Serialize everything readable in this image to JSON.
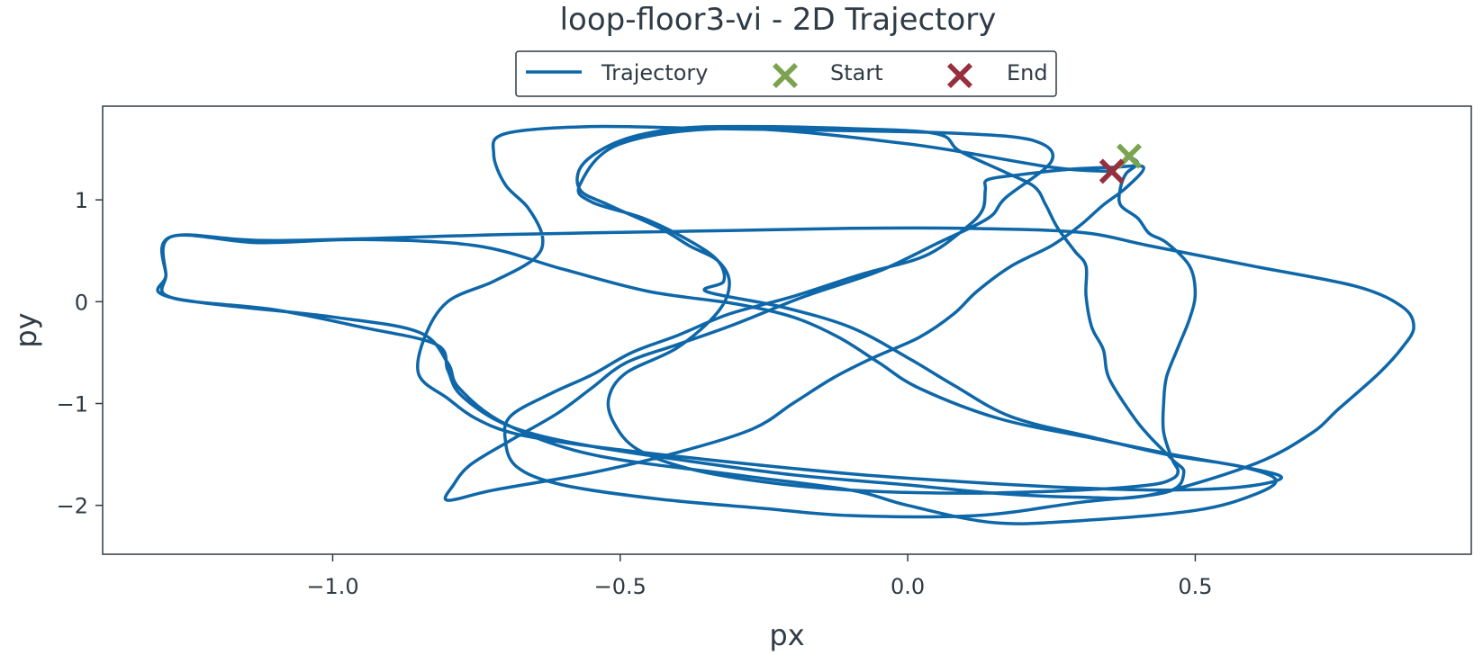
{
  "chart_data": {
    "type": "line",
    "title": "loop-floor3-vi - 2D Trajectory",
    "xlabel": "px",
    "ylabel": "py",
    "xlim": [
      -1.4,
      0.98
    ],
    "ylim": [
      -2.48,
      1.92
    ],
    "xticks": [
      -1.0,
      -0.5,
      0.0,
      0.5
    ],
    "xtick_labels": [
      "−1.0",
      "−0.5",
      "0.0",
      "0.5"
    ],
    "yticks": [
      1,
      0,
      -1,
      -2
    ],
    "ytick_labels": [
      "1",
      "0",
      "−1",
      "−2"
    ],
    "grid": false,
    "legend": {
      "placement": "top-center",
      "entries": [
        {
          "label": "Trajectory",
          "kind": "line",
          "color": "#0e67a8"
        },
        {
          "label": "Start",
          "kind": "x-marker",
          "color": "#7ba350"
        },
        {
          "label": "End",
          "kind": "x-marker",
          "color": "#96303c"
        }
      ]
    },
    "series": [
      {
        "label": "Trajectory",
        "color": "#0e67a8",
        "points": [
          [
            0.38,
            1.44
          ],
          [
            0.4,
            1.36
          ],
          [
            0.38,
            1.26
          ],
          [
            0.37,
            1.12
          ],
          [
            0.37,
            0.95
          ],
          [
            0.4,
            0.82
          ],
          [
            0.42,
            0.67
          ],
          [
            0.45,
            0.58
          ],
          [
            0.49,
            0.35
          ],
          [
            0.5,
            0.08
          ],
          [
            0.49,
            -0.17
          ],
          [
            0.47,
            -0.45
          ],
          [
            0.45,
            -0.74
          ],
          [
            0.445,
            -1.0
          ],
          [
            0.445,
            -1.28
          ],
          [
            0.46,
            -1.55
          ],
          [
            0.47,
            -1.66
          ],
          [
            0.46,
            -1.74
          ],
          [
            0.42,
            -1.8
          ],
          [
            0.3,
            -1.85
          ],
          [
            0.1,
            -1.88
          ],
          [
            -0.1,
            -1.85
          ],
          [
            -0.25,
            -1.77
          ],
          [
            -0.38,
            -1.64
          ],
          [
            -0.47,
            -1.45
          ],
          [
            -0.51,
            -1.2
          ],
          [
            -0.52,
            -0.95
          ],
          [
            -0.49,
            -0.7
          ],
          [
            -0.4,
            -0.45
          ],
          [
            -0.33,
            -0.1
          ],
          [
            -0.31,
            0.18
          ],
          [
            -0.33,
            0.4
          ],
          [
            -0.38,
            0.55
          ],
          [
            -0.43,
            0.72
          ],
          [
            -0.52,
            0.95
          ],
          [
            -0.57,
            1.1
          ],
          [
            -0.565,
            1.35
          ],
          [
            -0.5,
            1.58
          ],
          [
            -0.4,
            1.7
          ],
          [
            -0.28,
            1.72
          ],
          [
            -0.1,
            1.7
          ],
          [
            0.05,
            1.65
          ],
          [
            0.09,
            1.48
          ],
          [
            0.17,
            1.27
          ],
          [
            0.22,
            1.13
          ],
          [
            0.24,
            0.95
          ],
          [
            0.26,
            0.73
          ],
          [
            0.29,
            0.5
          ],
          [
            0.31,
            0.35
          ],
          [
            0.31,
            0.06
          ],
          [
            0.32,
            -0.25
          ],
          [
            0.34,
            -0.47
          ],
          [
            0.35,
            -0.75
          ],
          [
            0.39,
            -1.11
          ],
          [
            0.42,
            -1.32
          ],
          [
            0.46,
            -1.55
          ],
          [
            0.48,
            -1.68
          ],
          [
            0.45,
            -1.87
          ],
          [
            0.3,
            -1.97
          ],
          [
            0.12,
            -2.1
          ],
          [
            -0.1,
            -2.1
          ],
          [
            -0.25,
            -2.03
          ],
          [
            -0.43,
            -1.94
          ],
          [
            -0.6,
            -1.8
          ],
          [
            -0.68,
            -1.62
          ],
          [
            -0.7,
            -1.35
          ],
          [
            -0.69,
            -1.12
          ],
          [
            -0.62,
            -0.9
          ],
          [
            -0.55,
            -0.72
          ],
          [
            -0.48,
            -0.5
          ],
          [
            -0.4,
            -0.33
          ],
          [
            -0.31,
            -0.12
          ],
          [
            -0.2,
            0.05
          ],
          [
            -0.08,
            0.27
          ],
          [
            0.03,
            0.45
          ],
          [
            0.1,
            0.72
          ],
          [
            0.13,
            0.9
          ],
          [
            0.135,
            1.1
          ],
          [
            0.14,
            1.2
          ],
          [
            0.2,
            1.25
          ],
          [
            0.28,
            1.3
          ],
          [
            0.36,
            1.32
          ],
          [
            0.41,
            1.32
          ],
          [
            0.38,
            1.12
          ],
          [
            0.34,
            0.95
          ],
          [
            0.3,
            0.75
          ],
          [
            0.25,
            0.55
          ],
          [
            0.18,
            0.35
          ],
          [
            0.12,
            0.1
          ],
          [
            0.08,
            -0.12
          ],
          [
            0.02,
            -0.35
          ],
          [
            -0.06,
            -0.55
          ],
          [
            -0.13,
            -0.75
          ],
          [
            -0.2,
            -1.0
          ],
          [
            -0.27,
            -1.25
          ],
          [
            -0.4,
            -1.48
          ],
          [
            -0.55,
            -1.68
          ],
          [
            -0.72,
            -1.85
          ],
          [
            -0.8,
            -1.95
          ],
          [
            -0.79,
            -1.8
          ],
          [
            -0.76,
            -1.6
          ],
          [
            -0.69,
            -1.36
          ],
          [
            -0.61,
            -1.1
          ],
          [
            -0.55,
            -0.85
          ],
          [
            -0.49,
            -0.6
          ],
          [
            -0.4,
            -0.42
          ],
          [
            -0.3,
            -0.22
          ],
          [
            -0.18,
            0.05
          ],
          [
            -0.05,
            0.3
          ],
          [
            0.05,
            0.57
          ],
          [
            0.14,
            0.82
          ],
          [
            0.17,
            1.02
          ],
          [
            0.25,
            1.38
          ],
          [
            0.22,
            1.58
          ],
          [
            0.1,
            1.65
          ],
          [
            -0.1,
            1.68
          ],
          [
            -0.35,
            1.7
          ],
          [
            -0.55,
            1.72
          ],
          [
            -0.7,
            1.65
          ],
          [
            -0.72,
            1.45
          ],
          [
            -0.7,
            1.15
          ],
          [
            -0.66,
            0.92
          ],
          [
            -0.635,
            0.63
          ],
          [
            -0.65,
            0.42
          ],
          [
            -0.72,
            0.2
          ],
          [
            -0.8,
            0.0
          ],
          [
            -0.84,
            -0.35
          ],
          [
            -0.85,
            -0.72
          ],
          [
            -0.8,
            -0.95
          ],
          [
            -0.75,
            -1.15
          ],
          [
            -0.68,
            -1.3
          ],
          [
            -0.55,
            -1.42
          ],
          [
            -0.35,
            -1.55
          ],
          [
            -0.1,
            -1.69
          ],
          [
            0.1,
            -1.77
          ],
          [
            0.3,
            -1.83
          ],
          [
            0.45,
            -1.85
          ],
          [
            0.58,
            -1.82
          ],
          [
            0.65,
            -1.73
          ],
          [
            0.59,
            -1.63
          ],
          [
            0.46,
            -1.5
          ],
          [
            0.33,
            -1.35
          ],
          [
            0.16,
            -1.15
          ],
          [
            0.02,
            -0.85
          ],
          [
            -0.05,
            -0.6
          ],
          [
            -0.12,
            -0.35
          ],
          [
            -0.2,
            -0.15
          ],
          [
            -0.3,
            -0.02
          ],
          [
            -0.45,
            0.1
          ],
          [
            -0.6,
            0.32
          ],
          [
            -0.75,
            0.55
          ],
          [
            -0.95,
            0.61
          ],
          [
            -1.13,
            0.58
          ],
          [
            -1.28,
            0.64
          ],
          [
            -1.29,
            0.26
          ],
          [
            -1.28,
            0.04
          ],
          [
            -1.1,
            -0.08
          ],
          [
            -0.95,
            -0.25
          ],
          [
            -0.82,
            -0.42
          ],
          [
            -0.8,
            -0.67
          ],
          [
            -0.78,
            -0.9
          ],
          [
            -0.72,
            -1.15
          ],
          [
            -0.65,
            -1.3
          ],
          [
            -0.55,
            -1.42
          ],
          [
            -0.4,
            -1.55
          ],
          [
            -0.2,
            -1.7
          ],
          [
            0.0,
            -1.8
          ],
          [
            0.15,
            -1.88
          ],
          [
            0.3,
            -1.92
          ],
          [
            0.42,
            -1.9
          ],
          [
            0.6,
            -1.6
          ],
          [
            0.7,
            -1.3
          ],
          [
            0.75,
            -1.05
          ],
          [
            0.82,
            -0.7
          ],
          [
            0.86,
            -0.45
          ],
          [
            0.88,
            -0.25
          ],
          [
            0.86,
            -0.05
          ],
          [
            0.78,
            0.15
          ],
          [
            0.6,
            0.35
          ],
          [
            0.42,
            0.55
          ],
          [
            0.3,
            0.68
          ],
          [
            0.1,
            0.72
          ],
          [
            -0.1,
            0.72
          ],
          [
            -0.3,
            0.7
          ],
          [
            -0.5,
            0.68
          ],
          [
            -0.7,
            0.66
          ],
          [
            -1.1,
            0.6
          ],
          [
            -1.28,
            0.64
          ],
          [
            -1.29,
            0.26
          ],
          [
            -1.28,
            0.04
          ],
          [
            -1.0,
            -0.15
          ],
          [
            -0.85,
            -0.3
          ],
          [
            -0.8,
            -0.6
          ],
          [
            -0.78,
            -0.85
          ],
          [
            -0.7,
            -1.2
          ],
          [
            -0.55,
            -1.5
          ],
          [
            -0.3,
            -1.7
          ],
          [
            -0.1,
            -1.85
          ],
          [
            0.0,
            -2.0
          ],
          [
            0.15,
            -2.17
          ],
          [
            0.3,
            -2.15
          ],
          [
            0.5,
            -2.05
          ],
          [
            0.6,
            -1.9
          ],
          [
            0.64,
            -1.75
          ],
          [
            0.58,
            -1.62
          ],
          [
            0.45,
            -1.5
          ],
          [
            0.32,
            -1.33
          ],
          [
            0.18,
            -1.13
          ],
          [
            0.08,
            -0.82
          ],
          [
            0.0,
            -0.55
          ],
          [
            -0.1,
            -0.25
          ],
          [
            -0.22,
            -0.05
          ],
          [
            -0.35,
            0.1
          ],
          [
            -0.32,
            0.2
          ],
          [
            -0.33,
            0.4
          ],
          [
            -0.38,
            0.6
          ],
          [
            -0.46,
            0.82
          ],
          [
            -0.55,
            0.98
          ],
          [
            -0.57,
            1.15
          ],
          [
            -0.5,
            1.55
          ],
          [
            -0.3,
            1.7
          ],
          [
            0.0,
            1.55
          ],
          [
            0.25,
            1.32
          ],
          [
            0.35,
            1.28
          ]
        ]
      }
    ],
    "markers": [
      {
        "label": "Start",
        "x": 0.385,
        "y": 1.43,
        "color": "#7ba350"
      },
      {
        "label": "End",
        "x": 0.355,
        "y": 1.28,
        "color": "#96303c"
      }
    ]
  }
}
